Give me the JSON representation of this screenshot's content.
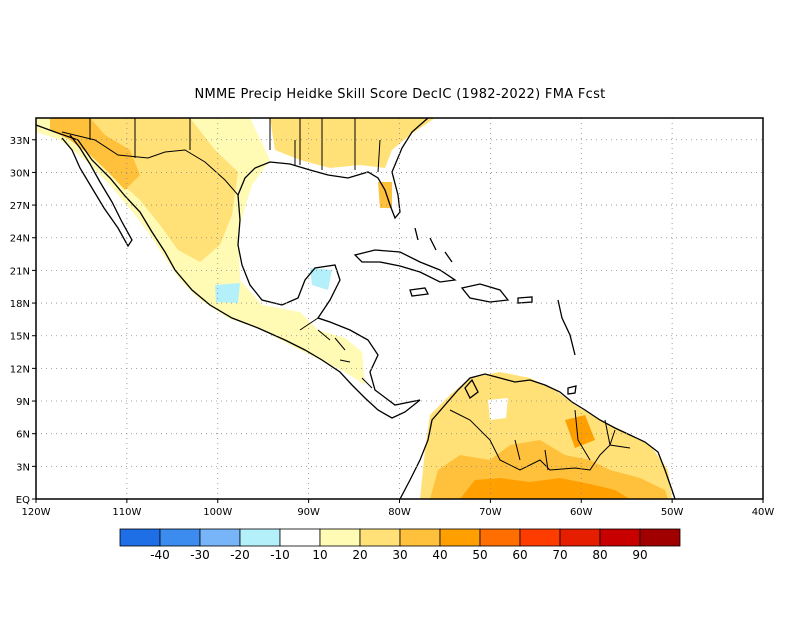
{
  "title": "NMME Precip Heidke Skill Score DecIC (1982-2022) FMA Fcst",
  "map": {
    "lon_range": [
      -120,
      -40
    ],
    "lat_range": [
      0,
      35
    ],
    "x_ticks": [
      "120W",
      "110W",
      "100W",
      "90W",
      "80W",
      "70W",
      "60W",
      "50W",
      "40W"
    ],
    "y_ticks": [
      "EQ",
      "3N",
      "6N",
      "9N",
      "12N",
      "15N",
      "18N",
      "21N",
      "24N",
      "27N",
      "30N",
      "33N"
    ],
    "gridlines": "dotted",
    "ocean_color": "#ffffff",
    "coast_color": "#000000"
  },
  "colorbar": {
    "labels": [
      "-40",
      "-30",
      "-20",
      "-10",
      "10",
      "20",
      "30",
      "40",
      "50",
      "60",
      "70",
      "80",
      "90"
    ],
    "colors": [
      "#1e6ee6",
      "#3c8cf0",
      "#78b4f8",
      "#b4f0fa",
      "#ffffff",
      "#fffab4",
      "#ffe178",
      "#ffc03c",
      "#ffa000",
      "#ff6e00",
      "#ff3c00",
      "#e61e00",
      "#c80000",
      "#a00000"
    ]
  },
  "regions": [
    {
      "name": "mexico",
      "color": "#fffab4"
    },
    {
      "name": "mexico-interior",
      "color": "#ffe178"
    },
    {
      "name": "mexico-north",
      "color": "#ffc03c"
    },
    {
      "name": "us-south",
      "color": "#ffe178"
    },
    {
      "name": "south-america-north",
      "color": "#ffe178"
    },
    {
      "name": "south-america-core",
      "color": "#ffc03c"
    },
    {
      "name": "south-america-hot",
      "color": "#ffa000"
    }
  ]
}
